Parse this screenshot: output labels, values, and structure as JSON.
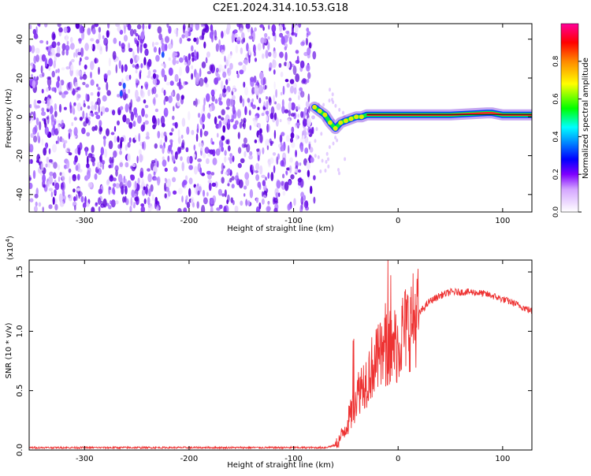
{
  "title": "C2E1.2024.314.10.53.G18",
  "chart_data": [
    {
      "type": "heatmap",
      "xlabel": "Height of straight line (km)",
      "ylabel": "Frequency (Hz)",
      "xlim": [
        -353,
        128
      ],
      "ylim": [
        -49,
        48
      ],
      "xticks": [
        -300,
        -200,
        -100,
        0,
        100
      ],
      "yticks": [
        -40,
        -20,
        0,
        20,
        40
      ],
      "noise_region_x": [
        -353,
        -80
      ],
      "signal_track": [
        {
          "x": -80,
          "y": 5
        },
        {
          "x": -75,
          "y": 3
        },
        {
          "x": -70,
          "y": 1
        },
        {
          "x": -65,
          "y": -3
        },
        {
          "x": -60,
          "y": -6
        },
        {
          "x": -55,
          "y": -3
        },
        {
          "x": -50,
          "y": -2
        },
        {
          "x": -45,
          "y": -1
        },
        {
          "x": -40,
          "y": 0
        },
        {
          "x": -35,
          "y": 0
        },
        {
          "x": -30,
          "y": 1
        },
        {
          "x": -20,
          "y": 1
        },
        {
          "x": 0,
          "y": 1
        },
        {
          "x": 50,
          "y": 1
        },
        {
          "x": 85,
          "y": 2
        },
        {
          "x": 90,
          "y": 2
        },
        {
          "x": 100,
          "y": 1
        },
        {
          "x": 128,
          "y": 1
        }
      ],
      "colorbar": {
        "label": "Normalized spectral amplitude",
        "ticks": [
          "0.0",
          "0.2",
          "0.4",
          "0.6",
          "0.8"
        ],
        "range": [
          0,
          1
        ]
      }
    },
    {
      "type": "line",
      "xlabel": "Height of straight line (km)",
      "ylabel": "SNR (10 * v/v)",
      "scale_label": "(x10",
      "scale_exp": "4",
      "scale_close": ")",
      "xlim": [
        -353,
        128
      ],
      "ylim": [
        0,
        1.6
      ],
      "xticks": [
        -300,
        -200,
        -100,
        0,
        100
      ],
      "yticks": [
        "0.0",
        "0.5",
        "1.0",
        "1.5"
      ],
      "line_color": "#ee3333",
      "series": [
        {
          "name": "SNR",
          "x": [
            -353,
            -300,
            -250,
            -200,
            -150,
            -100,
            -80,
            -70,
            -60,
            -55,
            -50,
            -45,
            -40,
            -35,
            -30,
            -25,
            -20,
            -15,
            -10,
            -5,
            0,
            5,
            10,
            20,
            30,
            40,
            50,
            60,
            70,
            80,
            90,
            100,
            110,
            120,
            128
          ],
          "y": [
            0.02,
            0.02,
            0.02,
            0.02,
            0.02,
            0.02,
            0.02,
            0.02,
            0.04,
            0.1,
            0.2,
            0.3,
            0.45,
            0.55,
            0.6,
            0.7,
            0.75,
            0.8,
            0.85,
            0.88,
            0.9,
            1.0,
            1.05,
            1.15,
            1.25,
            1.3,
            1.33,
            1.33,
            1.33,
            1.32,
            1.3,
            1.27,
            1.24,
            1.2,
            1.17
          ]
        }
      ]
    }
  ]
}
